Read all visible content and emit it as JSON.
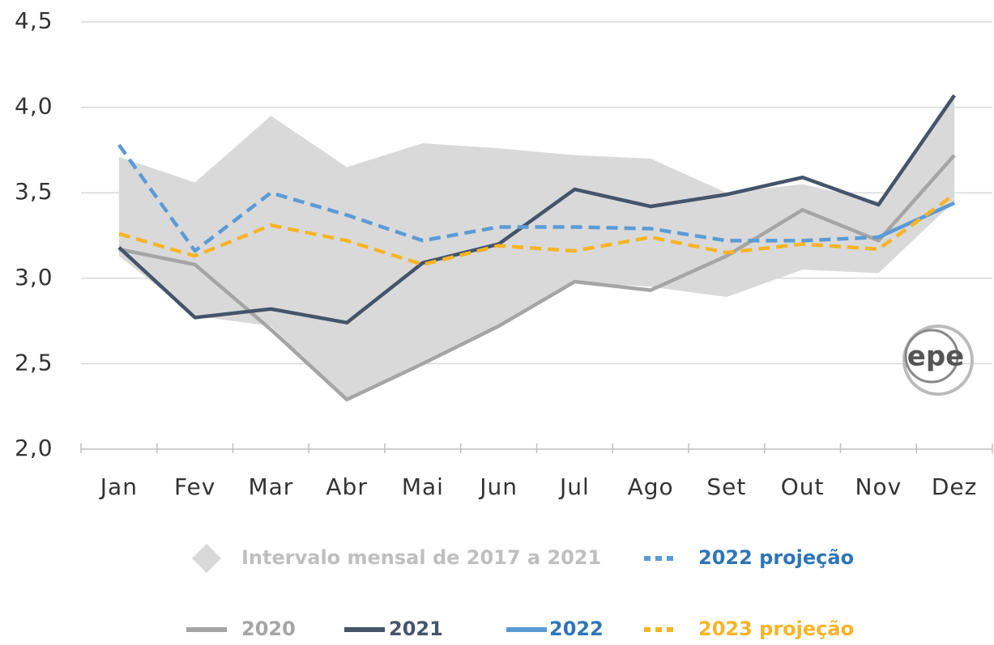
{
  "chart_data": {
    "type": "line",
    "categories": [
      "Jan",
      "Fev",
      "Mar",
      "Abr",
      "Mai",
      "Jun",
      "Jul",
      "Ago",
      "Set",
      "Out",
      "Nov",
      "Dez"
    ],
    "ylim": [
      2.0,
      4.5
    ],
    "yticks": [
      {
        "value": 2.0,
        "label": "2,0"
      },
      {
        "value": 2.5,
        "label": "2,5"
      },
      {
        "value": 3.0,
        "label": "3,0"
      },
      {
        "value": 3.5,
        "label": "3,5"
      },
      {
        "value": 4.0,
        "label": "4,0"
      },
      {
        "value": 4.5,
        "label": "4,5"
      }
    ],
    "grid": true,
    "band": {
      "name": "Intervalo mensal de 2017 a 2021",
      "color": "#d9d9d9",
      "upper": [
        3.71,
        3.56,
        3.95,
        3.65,
        3.79,
        3.76,
        3.72,
        3.7,
        3.5,
        3.55,
        3.45,
        4.05
      ],
      "lower": [
        3.13,
        2.78,
        2.72,
        2.28,
        2.5,
        2.72,
        2.98,
        2.95,
        2.89,
        3.05,
        3.03,
        3.45
      ]
    },
    "series": [
      {
        "name": "2022 projeção",
        "color": "#5b9bd5",
        "text_color": "#2e75b6",
        "dash": true,
        "values": [
          3.78,
          3.16,
          3.5,
          3.37,
          3.22,
          3.3,
          3.3,
          3.29,
          3.22,
          3.22,
          3.24,
          3.44
        ]
      },
      {
        "name": "2020",
        "color": "#a5a5a5",
        "text_color": "#a5a5a5",
        "dash": false,
        "values": [
          3.17,
          3.08,
          2.7,
          2.29,
          2.5,
          2.72,
          2.98,
          2.93,
          3.13,
          3.4,
          3.22,
          3.72
        ]
      },
      {
        "name": "2021",
        "color": "#44546a",
        "text_color": "#44546a",
        "dash": false,
        "values": [
          3.18,
          2.77,
          2.82,
          2.74,
          3.09,
          3.2,
          3.52,
          3.42,
          3.49,
          3.59,
          3.43,
          4.07
        ]
      },
      {
        "name": "2022",
        "color": "#5b9bd5",
        "text_color": "#2e75b6",
        "dash": false,
        "values": [
          null,
          null,
          null,
          null,
          null,
          null,
          null,
          null,
          null,
          null,
          3.24,
          3.44
        ]
      },
      {
        "name": "2023 projeção",
        "color": "#f6b426",
        "text_color": "#f6b426",
        "dash": true,
        "values": [
          3.26,
          3.13,
          3.31,
          3.22,
          3.08,
          3.19,
          3.16,
          3.24,
          3.15,
          3.2,
          3.17,
          3.49
        ]
      }
    ],
    "logo": "epe"
  }
}
